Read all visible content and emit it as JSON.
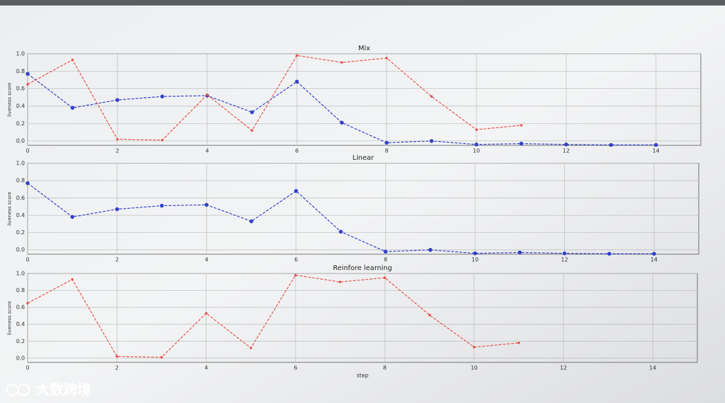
{
  "chart_data": [
    {
      "type": "line",
      "title": "Mix",
      "ylabel": "liveness score",
      "grid": true,
      "x": [
        0,
        1,
        2,
        3,
        4,
        5,
        6,
        7,
        8,
        9,
        10,
        11,
        12,
        13,
        14
      ],
      "series": [
        {
          "color": "#3340c8",
          "marker": "circle",
          "values": [
            0.77,
            0.38,
            0.47,
            0.51,
            0.52,
            0.33,
            0.68,
            0.21,
            -0.02,
            0.0,
            -0.04,
            -0.03,
            -0.04,
            -0.045,
            -0.045
          ]
        },
        {
          "color": "#e8534f",
          "marker": "dot",
          "values": [
            0.65,
            0.93,
            0.02,
            0.01,
            0.53,
            0.12,
            0.98,
            0.9,
            0.95,
            0.51,
            0.13,
            0.18,
            null,
            null,
            null
          ]
        }
      ],
      "xlim": [
        0,
        15
      ],
      "xticks": [
        0,
        2,
        4,
        6,
        8,
        10,
        12,
        14
      ],
      "ylim": [
        -0.05,
        1.0
      ],
      "yticks": [
        {
          "value": 0,
          "label": "0.0"
        },
        0.2,
        0.4,
        0.6,
        0.8,
        {
          "value": 1,
          "label": "1.0"
        }
      ]
    },
    {
      "type": "line",
      "title": "Linear",
      "ylabel": "liveness score",
      "grid": true,
      "x": [
        0,
        1,
        2,
        3,
        4,
        5,
        6,
        7,
        8,
        9,
        10,
        11,
        12,
        13,
        14
      ],
      "series": [
        {
          "color": "#3340c8",
          "marker": "circle",
          "values": [
            0.77,
            0.38,
            0.47,
            0.51,
            0.52,
            0.33,
            0.68,
            0.21,
            -0.02,
            0.0,
            -0.04,
            -0.03,
            -0.04,
            -0.045,
            -0.045
          ]
        }
      ],
      "xlim": [
        0,
        15
      ],
      "xticks": [
        0,
        2,
        4,
        6,
        8,
        10,
        12,
        14
      ],
      "ylim": [
        -0.05,
        1.0
      ],
      "yticks": [
        {
          "value": 0,
          "label": "0.0"
        },
        0.2,
        0.4,
        0.6,
        0.8,
        {
          "value": 1,
          "label": "1.0"
        }
      ]
    },
    {
      "type": "line",
      "title": "Reinfore learning",
      "ylabel": "liveness score",
      "xlabel": "step",
      "grid": true,
      "x": [
        0,
        1,
        2,
        3,
        4,
        5,
        6,
        7,
        8,
        9,
        10,
        11
      ],
      "series": [
        {
          "color": "#e8534f",
          "marker": "dot",
          "values": [
            0.65,
            0.93,
            0.02,
            0.01,
            0.53,
            0.12,
            0.98,
            0.9,
            0.95,
            0.51,
            0.13,
            0.18
          ]
        }
      ],
      "xlim": [
        0,
        15
      ],
      "xticks": [
        0,
        2,
        4,
        6,
        8,
        10,
        12,
        14
      ],
      "ylim": [
        -0.05,
        1.0
      ],
      "yticks": [
        {
          "value": 0,
          "label": "0.0"
        },
        0.2,
        0.4,
        0.6,
        0.8,
        {
          "value": 1,
          "label": "1.0"
        }
      ]
    }
  ],
  "watermark": "大数跨境"
}
